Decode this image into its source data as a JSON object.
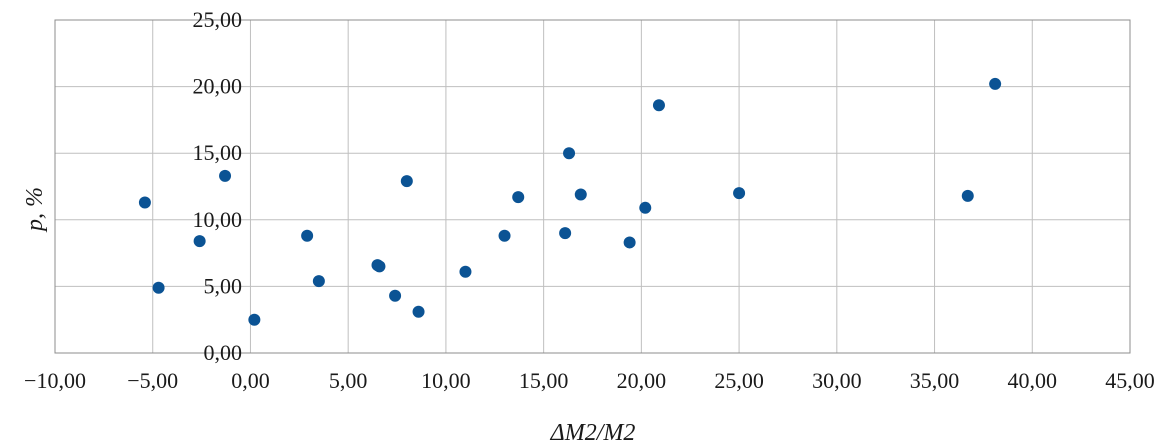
{
  "chart_data": {
    "type": "scatter",
    "title": "",
    "xlabel": "ΔM2/M2",
    "ylabel": "p, %",
    "xlim": [
      -10,
      45
    ],
    "ylim": [
      0,
      25
    ],
    "grid": true,
    "legend": "none",
    "color": "#0b5394",
    "x_ticks": [
      "−10,00",
      "−5,00",
      "0,00",
      "5,00",
      "10,00",
      "15,00",
      "20,00",
      "25,00",
      "30,00",
      "35,00",
      "40,00",
      "45,00"
    ],
    "y_ticks": [
      "0,00",
      "5,00",
      "10,00",
      "15,00",
      "20,00",
      "25,00"
    ],
    "series": [
      {
        "points": [
          {
            "x": -5.4,
            "y": 11.3
          },
          {
            "x": -4.7,
            "y": 4.9
          },
          {
            "x": -2.6,
            "y": 8.4
          },
          {
            "x": -1.3,
            "y": 13.3
          },
          {
            "x": 0.2,
            "y": 2.5
          },
          {
            "x": 2.9,
            "y": 8.8
          },
          {
            "x": 3.5,
            "y": 5.4
          },
          {
            "x": 6.5,
            "y": 6.6
          },
          {
            "x": 6.6,
            "y": 6.5
          },
          {
            "x": 7.4,
            "y": 4.3
          },
          {
            "x": 8.0,
            "y": 12.9
          },
          {
            "x": 8.6,
            "y": 3.1
          },
          {
            "x": 11.0,
            "y": 6.1
          },
          {
            "x": 13.0,
            "y": 8.8
          },
          {
            "x": 13.7,
            "y": 11.7
          },
          {
            "x": 16.1,
            "y": 9.0
          },
          {
            "x": 16.3,
            "y": 15.0
          },
          {
            "x": 16.9,
            "y": 11.9
          },
          {
            "x": 19.4,
            "y": 8.3
          },
          {
            "x": 20.2,
            "y": 10.9
          },
          {
            "x": 20.9,
            "y": 18.6
          },
          {
            "x": 25.0,
            "y": 12.0
          },
          {
            "x": 36.7,
            "y": 11.8
          },
          {
            "x": 38.1,
            "y": 20.2
          }
        ]
      }
    ]
  }
}
